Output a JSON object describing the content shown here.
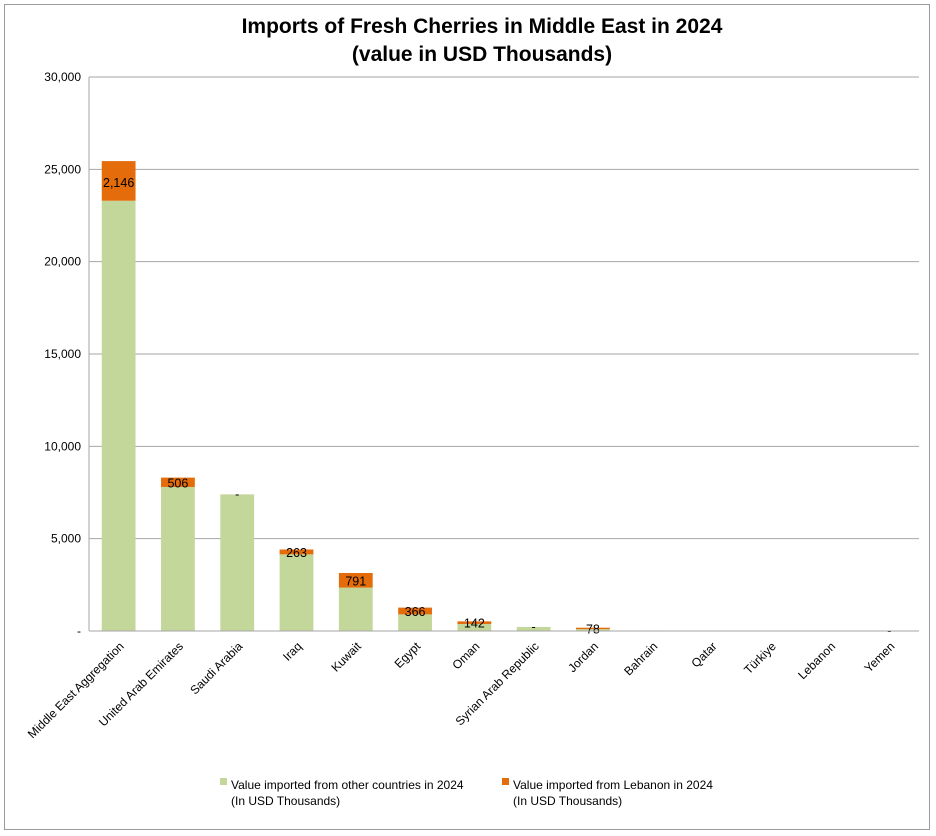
{
  "chart_data": {
    "type": "bar",
    "stacked": true,
    "title": "Imports of Fresh Cherries in Middle East in 2024",
    "subtitle": "(value in USD Thousands)",
    "xlabel": "",
    "ylabel": "",
    "ylim": [
      0,
      30000
    ],
    "yticks": [
      0,
      5000,
      10000,
      15000,
      20000,
      25000,
      30000
    ],
    "ytick_labels": [
      "-",
      "5,000",
      "10,000",
      "15,000",
      "20,000",
      "25,000",
      "30,000"
    ],
    "grid": true,
    "legend_position": "bottom",
    "categories": [
      "Middle East Aggregation",
      "United Arab Emirates",
      "Saudi Arabia",
      "Iraq",
      "Kuwait",
      "Egypt",
      "Oman",
      "Syrian Arab Republic",
      "Jordan",
      "Bahrain",
      "Qatar",
      "Türkiye",
      "Lebanon",
      "Yemen"
    ],
    "series": [
      {
        "name": "Value imported from other countries in 2024",
        "name_line2": "(In USD Thousands)",
        "color": "#c4d79b",
        "values": [
          23300,
          7800,
          7400,
          4150,
          2350,
          900,
          380,
          220,
          100,
          30,
          20,
          15,
          10,
          5
        ]
      },
      {
        "name": "Value imported from Lebanon in 2024",
        "name_line2": "(In USD Thousands)",
        "color": "#e46c0a",
        "values": [
          2146,
          506,
          0,
          263,
          791,
          366,
          142,
          0,
          78,
          0,
          0,
          0,
          0,
          0
        ],
        "labels": [
          "2,146",
          "506",
          "-",
          "263",
          "791",
          "366",
          "142",
          "-",
          "78",
          "-",
          "-",
          "",
          "",
          "-"
        ]
      }
    ]
  }
}
